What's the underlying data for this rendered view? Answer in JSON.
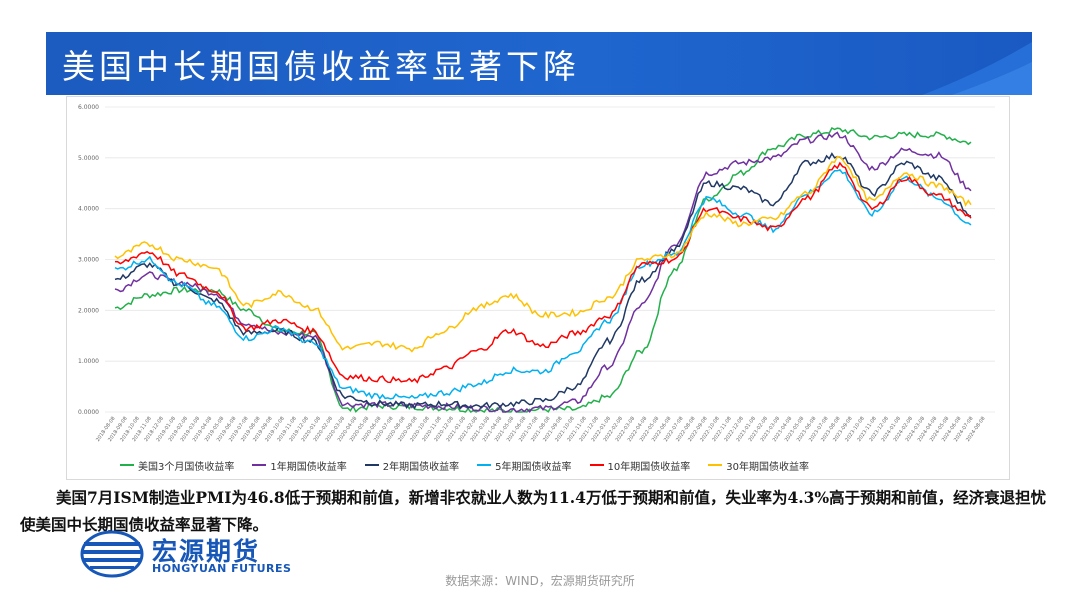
{
  "header": {
    "title": "美国中长期国债收益率显著下降"
  },
  "body_text": "美国7月ISM制造业PMI为46.8低于预期和前值，新增非农就业人数为11.4万低于预期和前值，失业率为4.3%高于预期和前值，经济衰退担忧使美国中长期国债收益率显著下降。",
  "logo": {
    "cn": "宏源期货",
    "en": "HONGYUAN FUTURES"
  },
  "source": "数据来源：WIND，宏源期货研究所",
  "colors": {
    "banner": "#1f66cf",
    "brand": "#1757b8"
  },
  "chart_data": {
    "type": "line",
    "ylim": [
      0,
      6
    ],
    "yticks": [
      "0.0000",
      "1.0000",
      "2.0000",
      "3.0000",
      "4.0000",
      "5.0000",
      "6.0000"
    ],
    "x": [
      "2018-08",
      "2018-11",
      "2019-02",
      "2019-05",
      "2019-08",
      "2019-11",
      "2020-02",
      "2020-03",
      "2020-05",
      "2020-08",
      "2020-11",
      "2021-02",
      "2021-05",
      "2021-08",
      "2021-11",
      "2022-02",
      "2022-05",
      "2022-08",
      "2022-11",
      "2023-02",
      "2023-05",
      "2023-08",
      "2023-10",
      "2024-01",
      "2024-04",
      "2024-07",
      "2024-08"
    ],
    "xtick_labels": [
      "2018-08-08",
      "2018-09-08",
      "2018-10-08",
      "2018-11-08",
      "2018-12-08",
      "2019-01-08",
      "2019-02-08",
      "2019-03-08",
      "2019-04-08",
      "2019-05-08",
      "2019-06-08",
      "2019-07-08",
      "2019-08-08",
      "2019-09-08",
      "2019-10-08",
      "2019-11-08",
      "2019-12-08",
      "2020-01-08",
      "2020-02-08",
      "2020-03-08",
      "2020-04-08",
      "2020-05-08",
      "2020-06-08",
      "2020-07-08",
      "2020-08-08",
      "2020-09-08",
      "2020-10-08",
      "2020-11-08",
      "2020-12-08",
      "2021-01-08",
      "2021-02-08",
      "2021-03-08",
      "2021-04-08",
      "2021-05-08",
      "2021-06-08",
      "2021-07-08",
      "2021-08-08",
      "2021-09-08",
      "2021-10-08",
      "2021-11-08",
      "2021-12-08",
      "2022-01-08",
      "2022-02-08",
      "2022-03-08",
      "2022-04-08",
      "2022-05-08",
      "2022-06-08",
      "2022-07-08",
      "2022-08-08",
      "2022-09-08",
      "2022-10-08",
      "2022-11-08",
      "2022-12-08",
      "2023-01-08",
      "2023-02-08",
      "2023-03-08",
      "2023-04-08",
      "2023-05-08",
      "2023-06-08",
      "2023-07-08",
      "2023-08-08",
      "2023-09-08",
      "2023-10-08",
      "2023-11-08",
      "2023-12-08",
      "2024-01-08",
      "2024-02-08",
      "2024-03-08",
      "2024-04-08",
      "2024-05-08",
      "2024-06-08",
      "2024-07-08",
      "2024-08-08"
    ],
    "series": [
      {
        "name": "美国3个月国债收益率",
        "color": "#22b04b",
        "values": [
          2.05,
          2.3,
          2.4,
          2.4,
          2.0,
          1.6,
          1.55,
          0.05,
          0.12,
          0.1,
          0.08,
          0.04,
          0.02,
          0.05,
          0.05,
          0.3,
          1.2,
          2.8,
          4.2,
          4.7,
          5.2,
          5.45,
          5.55,
          5.4,
          5.45,
          5.45,
          5.3
        ]
      },
      {
        "name": "1年期国债收益率",
        "color": "#7030a0",
        "values": [
          2.4,
          2.7,
          2.55,
          2.35,
          1.75,
          1.55,
          1.5,
          0.15,
          0.15,
          0.13,
          0.11,
          0.08,
          0.05,
          0.07,
          0.2,
          0.9,
          2.1,
          3.3,
          4.7,
          4.9,
          5.0,
          5.35,
          5.45,
          4.8,
          5.15,
          5.05,
          4.4
        ]
      },
      {
        "name": "2年期国债收益率",
        "color": "#203864",
        "values": [
          2.6,
          2.9,
          2.5,
          2.2,
          1.55,
          1.6,
          1.4,
          0.3,
          0.17,
          0.13,
          0.16,
          0.12,
          0.16,
          0.22,
          0.5,
          1.4,
          2.6,
          3.2,
          4.5,
          4.4,
          4.1,
          4.9,
          5.05,
          4.3,
          4.9,
          4.6,
          3.9
        ]
      },
      {
        "name": "5年期国债收益率",
        "color": "#00b0f0",
        "values": [
          2.8,
          3.0,
          2.5,
          2.1,
          1.45,
          1.65,
          1.35,
          0.45,
          0.32,
          0.27,
          0.38,
          0.55,
          0.82,
          0.8,
          1.2,
          1.8,
          2.9,
          3.1,
          4.2,
          3.9,
          3.6,
          4.3,
          4.75,
          3.9,
          4.6,
          4.2,
          3.7
        ]
      },
      {
        "name": "10年期国债收益率",
        "color": "#ff0000",
        "values": [
          2.9,
          3.15,
          2.7,
          2.4,
          1.65,
          1.8,
          1.6,
          0.7,
          0.65,
          0.6,
          0.85,
          1.2,
          1.6,
          1.3,
          1.55,
          1.9,
          2.9,
          3.0,
          4.0,
          3.8,
          3.6,
          4.2,
          4.85,
          4.0,
          4.6,
          4.25,
          3.85
        ]
      },
      {
        "name": "30年期国债收益率",
        "color": "#ffc000",
        "values": [
          3.05,
          3.3,
          3.0,
          2.85,
          2.1,
          2.35,
          2.05,
          1.25,
          1.35,
          1.25,
          1.6,
          2.05,
          2.3,
          1.9,
          1.95,
          2.25,
          3.0,
          3.1,
          3.9,
          3.7,
          3.8,
          4.3,
          5.0,
          4.15,
          4.7,
          4.45,
          4.1
        ]
      }
    ]
  }
}
